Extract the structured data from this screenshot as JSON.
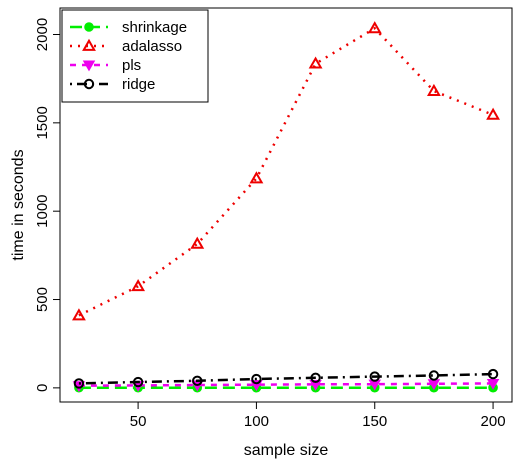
{
  "chart_data": {
    "type": "line",
    "xlabel": "sample size",
    "ylabel": "time in seconds",
    "x": [
      25,
      50,
      75,
      100,
      125,
      150,
      175,
      200
    ],
    "xlim": [
      17,
      208
    ],
    "ylim": [
      -80,
      2150
    ],
    "xticks": [
      "50",
      "100",
      "150",
      "200"
    ],
    "yticks": [
      "0",
      "500",
      "1000",
      "1500",
      "2000"
    ],
    "legend_position": "top-left",
    "grid": false,
    "series": [
      {
        "name": "shrinkage",
        "color": "#00ee00",
        "line": "longdash",
        "marker": "filled-circle",
        "values": [
          1,
          1,
          1,
          1,
          1,
          1,
          1,
          1
        ]
      },
      {
        "name": "adalasso",
        "color": "#ee0000",
        "line": "dotted",
        "marker": "triangle-up",
        "values": [
          410,
          575,
          815,
          1185,
          1835,
          2035,
          1680,
          1545
        ]
      },
      {
        "name": "pls",
        "color": "#ee00ee",
        "line": "dashed",
        "marker": "triangle-down",
        "values": [
          12,
          14,
          16,
          18,
          20,
          21,
          23,
          25
        ]
      },
      {
        "name": "ridge",
        "color": "#000000",
        "line": "dotdash",
        "marker": "open-circle",
        "values": [
          25,
          33,
          40,
          50,
          57,
          64,
          70,
          78
        ]
      }
    ]
  }
}
